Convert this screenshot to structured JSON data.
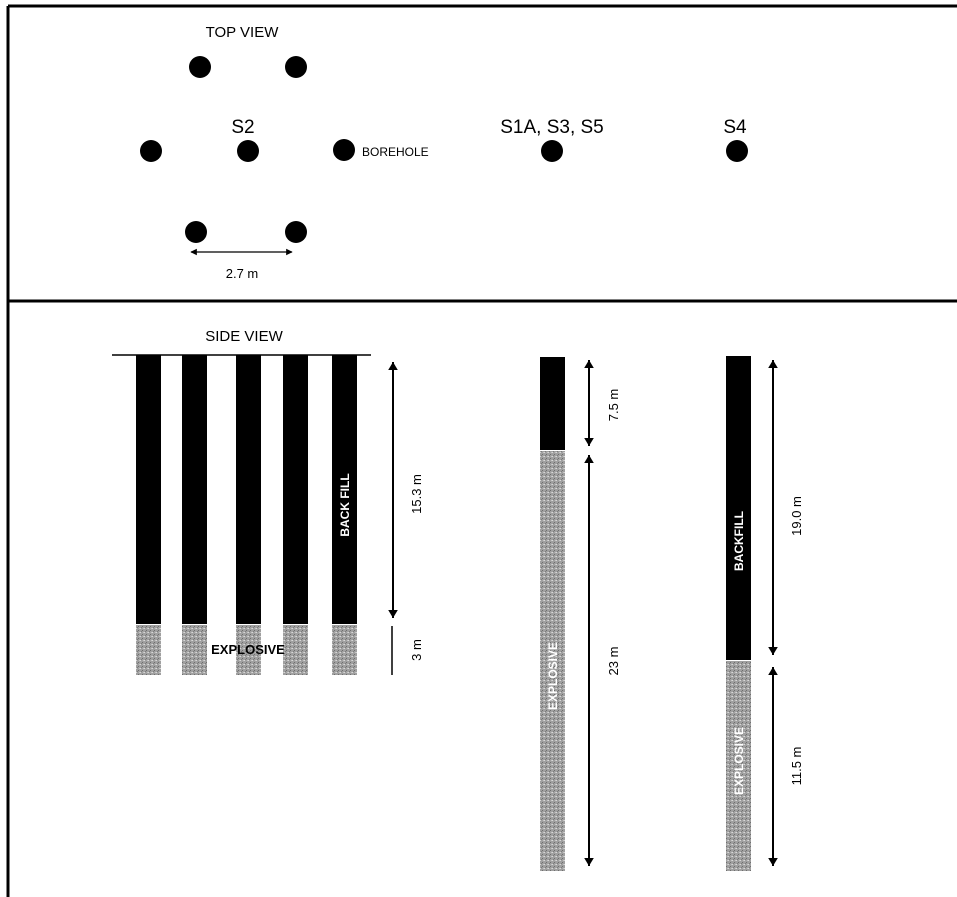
{
  "top_view": {
    "title": "TOP VIEW",
    "label_s2": "S2",
    "label_s1a_s3_s5": "S1A, S3, S5",
    "label_s4": "S4",
    "borehole_label": "BOREHOLE",
    "spacing_label": "2.7 m"
  },
  "side_view": {
    "title": "SIDE VIEW",
    "s2": {
      "backfill_label": "BACK FILL",
      "explosive_label": "EXPLOSIVE",
      "backfill_depth": "15.3 m",
      "explosive_depth": "3 m"
    },
    "s1a": {
      "explosive_label": "EXPLOSIVE",
      "backfill_depth": "7.5 m",
      "explosive_depth": "23 m"
    },
    "s4": {
      "backfill_label": "BACKFILL",
      "explosive_label": "EXPLOSIVE",
      "backfill_depth": "19.0 m",
      "explosive_depth": "11.5 m"
    }
  },
  "colors": {
    "backfill": "#000000",
    "explosive": "#9a9a9a",
    "line": "#000000",
    "background": "#ffffff"
  }
}
